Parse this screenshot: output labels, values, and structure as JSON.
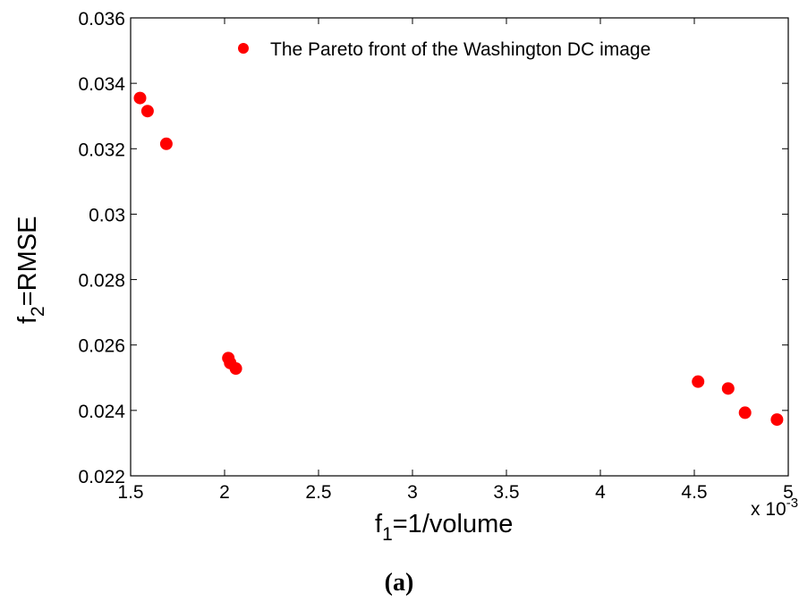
{
  "chart_data": {
    "type": "scatter",
    "xlabel": {
      "base": "f",
      "sub": "1",
      "rest": "=1/volume"
    },
    "ylabel": {
      "base": "f",
      "sub": "2",
      "rest": "=RMSE"
    },
    "x_multiplier": {
      "prefix": "x 10",
      "exponent": "-3"
    },
    "xlim": [
      1.5,
      5
    ],
    "ylim": [
      0.022,
      0.036
    ],
    "xticks": [
      1.5,
      2,
      2.5,
      3,
      3.5,
      4,
      4.5,
      5
    ],
    "xtick_labels": [
      "1.5",
      "2",
      "2.5",
      "3",
      "3.5",
      "4",
      "4.5",
      "5"
    ],
    "yticks": [
      0.022,
      0.024,
      0.026,
      0.028,
      0.03,
      0.032,
      0.034,
      0.036
    ],
    "ytick_labels": [
      "0.022",
      "0.024",
      "0.026",
      "0.028",
      "0.03",
      "0.032",
      "0.034",
      "0.036"
    ],
    "grid": false,
    "legend_position": "top-right",
    "series": [
      {
        "name": "The Pareto front of the Washington DC image",
        "color": "#ff0000",
        "marker": "filled-circle",
        "points": [
          {
            "x": 1.55,
            "y": 0.03355
          },
          {
            "x": 1.59,
            "y": 0.03315
          },
          {
            "x": 1.69,
            "y": 0.03215
          },
          {
            "x": 2.02,
            "y": 0.0256
          },
          {
            "x": 2.03,
            "y": 0.02545
          },
          {
            "x": 2.06,
            "y": 0.02528
          },
          {
            "x": 4.52,
            "y": 0.02488
          },
          {
            "x": 4.68,
            "y": 0.02467
          },
          {
            "x": 4.77,
            "y": 0.02393
          },
          {
            "x": 4.94,
            "y": 0.02372
          }
        ]
      }
    ]
  },
  "caption": {
    "open": "(",
    "letter": "a",
    "close": ")"
  }
}
